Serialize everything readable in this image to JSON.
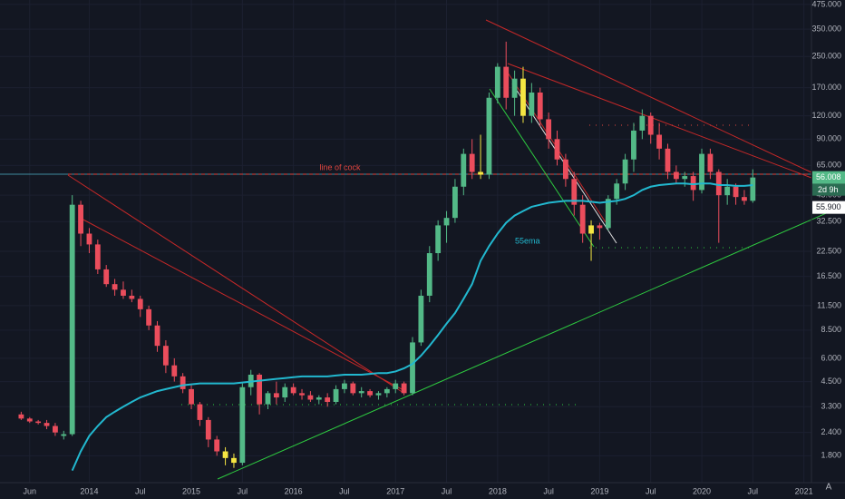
{
  "chart_data": {
    "type": "candlestick",
    "log_scale": true,
    "grid": true,
    "colors": {
      "up": "#53b987",
      "down": "#eb4d5c",
      "highlight": "#f5e642",
      "ema": "#22b8cf"
    },
    "highlighted_months": [
      "2015-05",
      "2015-06",
      "2017-11",
      "2018-04",
      "2018-12"
    ],
    "categories": [
      "2013-05",
      "2013-06",
      "2013-07",
      "2013-08",
      "2013-09",
      "2013-10",
      "2013-11",
      "2013-12",
      "2014-01",
      "2014-02",
      "2014-03",
      "2014-04",
      "2014-05",
      "2014-06",
      "2014-07",
      "2014-08",
      "2014-09",
      "2014-10",
      "2014-11",
      "2014-12",
      "2015-01",
      "2015-02",
      "2015-03",
      "2015-04",
      "2015-05",
      "2015-06",
      "2015-07",
      "2015-08",
      "2015-09",
      "2015-10",
      "2015-11",
      "2015-12",
      "2016-01",
      "2016-02",
      "2016-03",
      "2016-04",
      "2016-05",
      "2016-06",
      "2016-07",
      "2016-08",
      "2016-09",
      "2016-10",
      "2016-11",
      "2016-12",
      "2017-01",
      "2017-02",
      "2017-03",
      "2017-04",
      "2017-05",
      "2017-06",
      "2017-07",
      "2017-08",
      "2017-09",
      "2017-10",
      "2017-11",
      "2017-12",
      "2018-01",
      "2018-02",
      "2018-03",
      "2018-04",
      "2018-05",
      "2018-06",
      "2018-07",
      "2018-08",
      "2018-09",
      "2018-10",
      "2018-11",
      "2018-12",
      "2019-01",
      "2019-02",
      "2019-03",
      "2019-04",
      "2019-05",
      "2019-06",
      "2019-07",
      "2019-08",
      "2019-09",
      "2019-10",
      "2019-11",
      "2019-12",
      "2020-01",
      "2020-02",
      "2020-03",
      "2020-04",
      "2020-05",
      "2020-06",
      "2020-07"
    ],
    "open": [
      3.0,
      2.85,
      2.75,
      2.7,
      2.6,
      2.3,
      2.35,
      40,
      28,
      24.5,
      18,
      15,
      14,
      13,
      12.5,
      11,
      9,
      7,
      5.5,
      4.8,
      4.1,
      3.4,
      2.8,
      2.2,
      1.9,
      1.75,
      1.65,
      4.2,
      4.9,
      3.4,
      3.9,
      3.7,
      4.2,
      3.9,
      3.8,
      3.6,
      3.7,
      3.5,
      4.1,
      4.4,
      3.9,
      4.0,
      3.8,
      3.9,
      4.1,
      4.4,
      3.9,
      7.3,
      13,
      22,
      31,
      34,
      50,
      75,
      60,
      58,
      150,
      220,
      150,
      190,
      120,
      160,
      115,
      90,
      70,
      55,
      40,
      28,
      31,
      30,
      43,
      52,
      70,
      100,
      120,
      95,
      80,
      60,
      55,
      57,
      48,
      75,
      60,
      45,
      50,
      44,
      42
    ],
    "high": [
      3.1,
      2.9,
      2.8,
      2.8,
      2.7,
      2.45,
      45,
      42,
      30,
      26,
      19,
      16,
      15.5,
      14,
      13,
      11.5,
      9.5,
      7.5,
      6,
      5,
      4.3,
      3.5,
      2.9,
      2.3,
      2.0,
      1.85,
      4.4,
      5.2,
      5.0,
      4.0,
      4.5,
      4.4,
      4.4,
      4.1,
      4.0,
      3.8,
      3.9,
      4.3,
      4.6,
      4.5,
      4.2,
      4.1,
      4.0,
      4.2,
      4.6,
      4.5,
      7.8,
      14,
      24,
      33,
      37,
      55,
      80,
      90,
      95,
      160,
      230,
      300,
      210,
      220,
      180,
      170,
      125,
      100,
      75,
      60,
      45,
      33,
      32,
      45,
      55,
      75,
      110,
      130,
      125,
      110,
      85,
      65,
      60,
      60,
      80,
      80,
      62,
      55,
      52,
      48,
      62
    ],
    "low": [
      2.8,
      2.7,
      2.65,
      2.5,
      2.3,
      2.2,
      2.3,
      24,
      22,
      17,
      14.5,
      13,
      12.5,
      12,
      10,
      8.5,
      6.5,
      5,
      4.5,
      3.9,
      3.2,
      2.6,
      2.0,
      1.8,
      1.6,
      1.55,
      1.6,
      3.8,
      3.0,
      3.2,
      3.4,
      3.5,
      3.8,
      3.6,
      3.5,
      3.4,
      3.3,
      3.4,
      3.9,
      3.8,
      3.7,
      3.7,
      3.6,
      3.7,
      3.9,
      3.8,
      3.8,
      7,
      12,
      20,
      25,
      32,
      45,
      55,
      55,
      55,
      140,
      130,
      120,
      110,
      110,
      105,
      80,
      65,
      50,
      35,
      25,
      20,
      26,
      29,
      40,
      48,
      60,
      90,
      85,
      70,
      55,
      52,
      50,
      42,
      46,
      55,
      25,
      40,
      40,
      40,
      41
    ],
    "close": [
      2.85,
      2.75,
      2.7,
      2.6,
      2.4,
      2.35,
      40,
      28,
      24.5,
      18,
      15,
      14,
      13,
      12.5,
      11,
      9,
      7,
      5.5,
      4.8,
      4.1,
      3.4,
      2.8,
      2.2,
      1.9,
      1.75,
      1.65,
      4.2,
      4.9,
      3.4,
      3.9,
      3.7,
      4.2,
      3.9,
      3.8,
      3.6,
      3.7,
      3.5,
      4.1,
      4.4,
      3.9,
      4.0,
      3.8,
      3.9,
      4.1,
      4.4,
      3.9,
      7.3,
      13,
      22,
      31,
      34,
      50,
      75,
      60,
      58,
      150,
      220,
      150,
      190,
      120,
      160,
      115,
      90,
      70,
      55,
      40,
      28,
      31,
      30,
      43,
      52,
      70,
      100,
      120,
      95,
      80,
      60,
      55,
      57,
      48,
      75,
      60,
      45,
      50,
      44,
      42,
      56.008
    ],
    "ema": {
      "name": "55ema",
      "values": [
        null,
        null,
        null,
        null,
        null,
        null,
        1.5,
        1.9,
        2.3,
        2.6,
        2.9,
        3.1,
        3.3,
        3.5,
        3.7,
        3.85,
        4.0,
        4.1,
        4.2,
        4.3,
        4.35,
        4.4,
        4.4,
        4.4,
        4.4,
        4.4,
        4.45,
        4.5,
        4.55,
        4.6,
        4.65,
        4.7,
        4.75,
        4.8,
        4.8,
        4.8,
        4.8,
        4.85,
        4.9,
        4.9,
        4.9,
        4.95,
        5.0,
        5.0,
        5.1,
        5.3,
        5.6,
        6.2,
        7.0,
        8.0,
        9.2,
        10.5,
        12.5,
        15,
        20,
        24,
        28,
        32,
        35,
        37,
        39,
        40,
        41,
        41.5,
        42,
        42,
        42,
        41.5,
        41,
        41.5,
        42,
        43,
        45,
        48,
        50,
        51,
        51.5,
        52,
        52,
        51.5,
        52,
        52,
        51,
        51,
        50.5,
        50.5,
        51
      ]
    },
    "annotation": "line of cock",
    "xlim": [
      "2013-04",
      "2021-02"
    ],
    "xticks": [
      {
        "value": "2013-06",
        "label": "Jun"
      },
      {
        "value": "2014-01",
        "label": "2014"
      },
      {
        "value": "2014-07",
        "label": "Jul"
      },
      {
        "value": "2015-01",
        "label": "2015"
      },
      {
        "value": "2015-07",
        "label": "Jul"
      },
      {
        "value": "2016-01",
        "label": "2016"
      },
      {
        "value": "2016-07",
        "label": "Jul"
      },
      {
        "value": "2017-01",
        "label": "2017"
      },
      {
        "value": "2017-07",
        "label": "Jul"
      },
      {
        "value": "2018-01",
        "label": "2018"
      },
      {
        "value": "2018-07",
        "label": "Jul"
      },
      {
        "value": "2019-01",
        "label": "2019"
      },
      {
        "value": "2019-07",
        "label": "Jul"
      },
      {
        "value": "2020-01",
        "label": "2020"
      },
      {
        "value": "2020-07",
        "label": "Jul"
      },
      {
        "value": "2021-01",
        "label": "2021"
      }
    ],
    "ylim": [
      1.32,
      502
    ],
    "yticks": [
      {
        "value": 1.8,
        "label": "1.800"
      },
      {
        "value": 2.4,
        "label": "2.400"
      },
      {
        "value": 3.3,
        "label": "3.300"
      },
      {
        "value": 4.5,
        "label": "4.500"
      },
      {
        "value": 6,
        "label": "6.000"
      },
      {
        "value": 8.5,
        "label": "8.500"
      },
      {
        "value": 11.5,
        "label": "11.500"
      },
      {
        "value": 16.5,
        "label": "16.500"
      },
      {
        "value": 22.5,
        "label": "22.500"
      },
      {
        "value": 32.5,
        "label": "32.500"
      },
      {
        "value": 45,
        "label": "45.000"
      },
      {
        "value": 65,
        "label": "65.000"
      },
      {
        "value": 90,
        "label": "90.000"
      },
      {
        "value": 120,
        "label": "120.000"
      },
      {
        "value": 170,
        "label": "170.000"
      },
      {
        "value": 250,
        "label": "250.000"
      },
      {
        "value": 350,
        "label": "350.000"
      },
      {
        "value": 475,
        "label": "475.000"
      }
    ],
    "last_price": {
      "value": 56.008,
      "label": "56.008"
    },
    "countdown": "2d 9h",
    "price_line": {
      "value": 55.9,
      "label": "55.900"
    },
    "scale_mode": "A"
  }
}
